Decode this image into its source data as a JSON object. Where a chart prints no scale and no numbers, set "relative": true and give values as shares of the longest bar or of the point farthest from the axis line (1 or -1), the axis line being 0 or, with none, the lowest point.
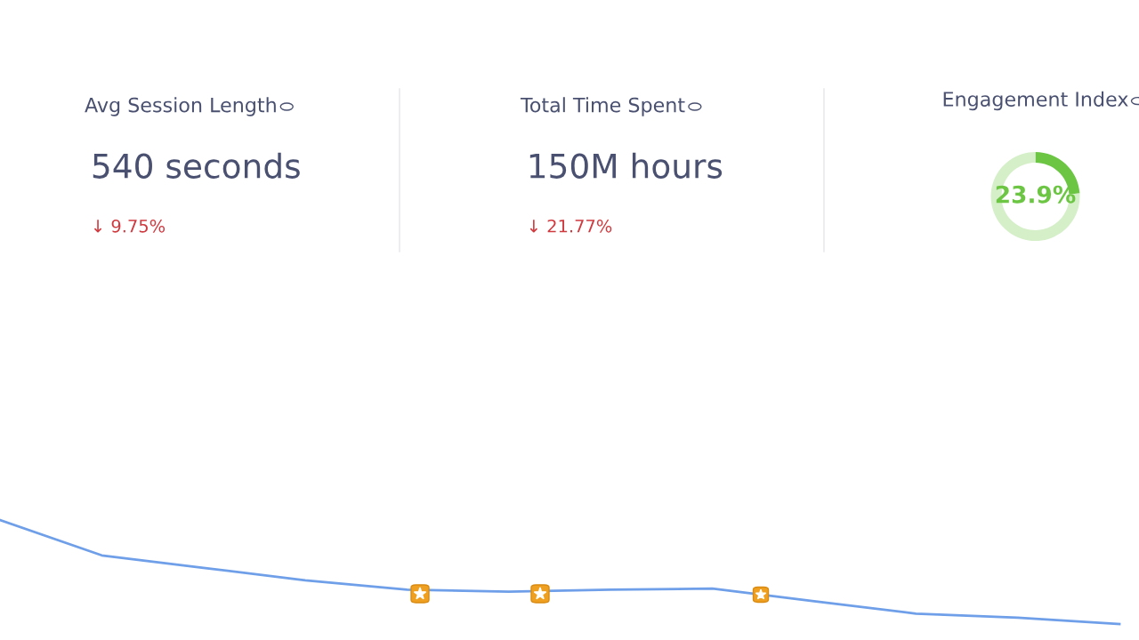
{
  "chart_data": [
    {
      "type": "other",
      "title": "Avg Session Length",
      "annotations": [
        "540 seconds",
        "↓ 9.75%"
      ]
    },
    {
      "type": "other",
      "title": "Total Time Spent",
      "annotations": [
        "150M hours",
        "↓ 21.77%"
      ]
    },
    {
      "type": "donut",
      "title": "Engagement Index",
      "categories": [
        null,
        null
      ],
      "values": [
        23.9,
        76.1
      ],
      "colors": [
        "#6cc644",
        "#d5efc8"
      ],
      "value_labels": [
        "23.9%",
        null
      ]
    },
    {
      "type": "line",
      "relative": true,
      "categories": [
        null,
        null,
        null,
        null,
        null,
        null,
        null,
        null,
        null,
        null,
        null,
        null
      ],
      "series": [
        {
          "color": "#6f9fe8",
          "values": [
            1.0,
            0.66,
            0.54,
            0.42,
            0.33,
            0.31,
            0.33,
            0.34,
            0.22,
            0.1,
            0.06,
            0.0
          ]
        }
      ],
      "marker": "none"
    }
  ]
}
